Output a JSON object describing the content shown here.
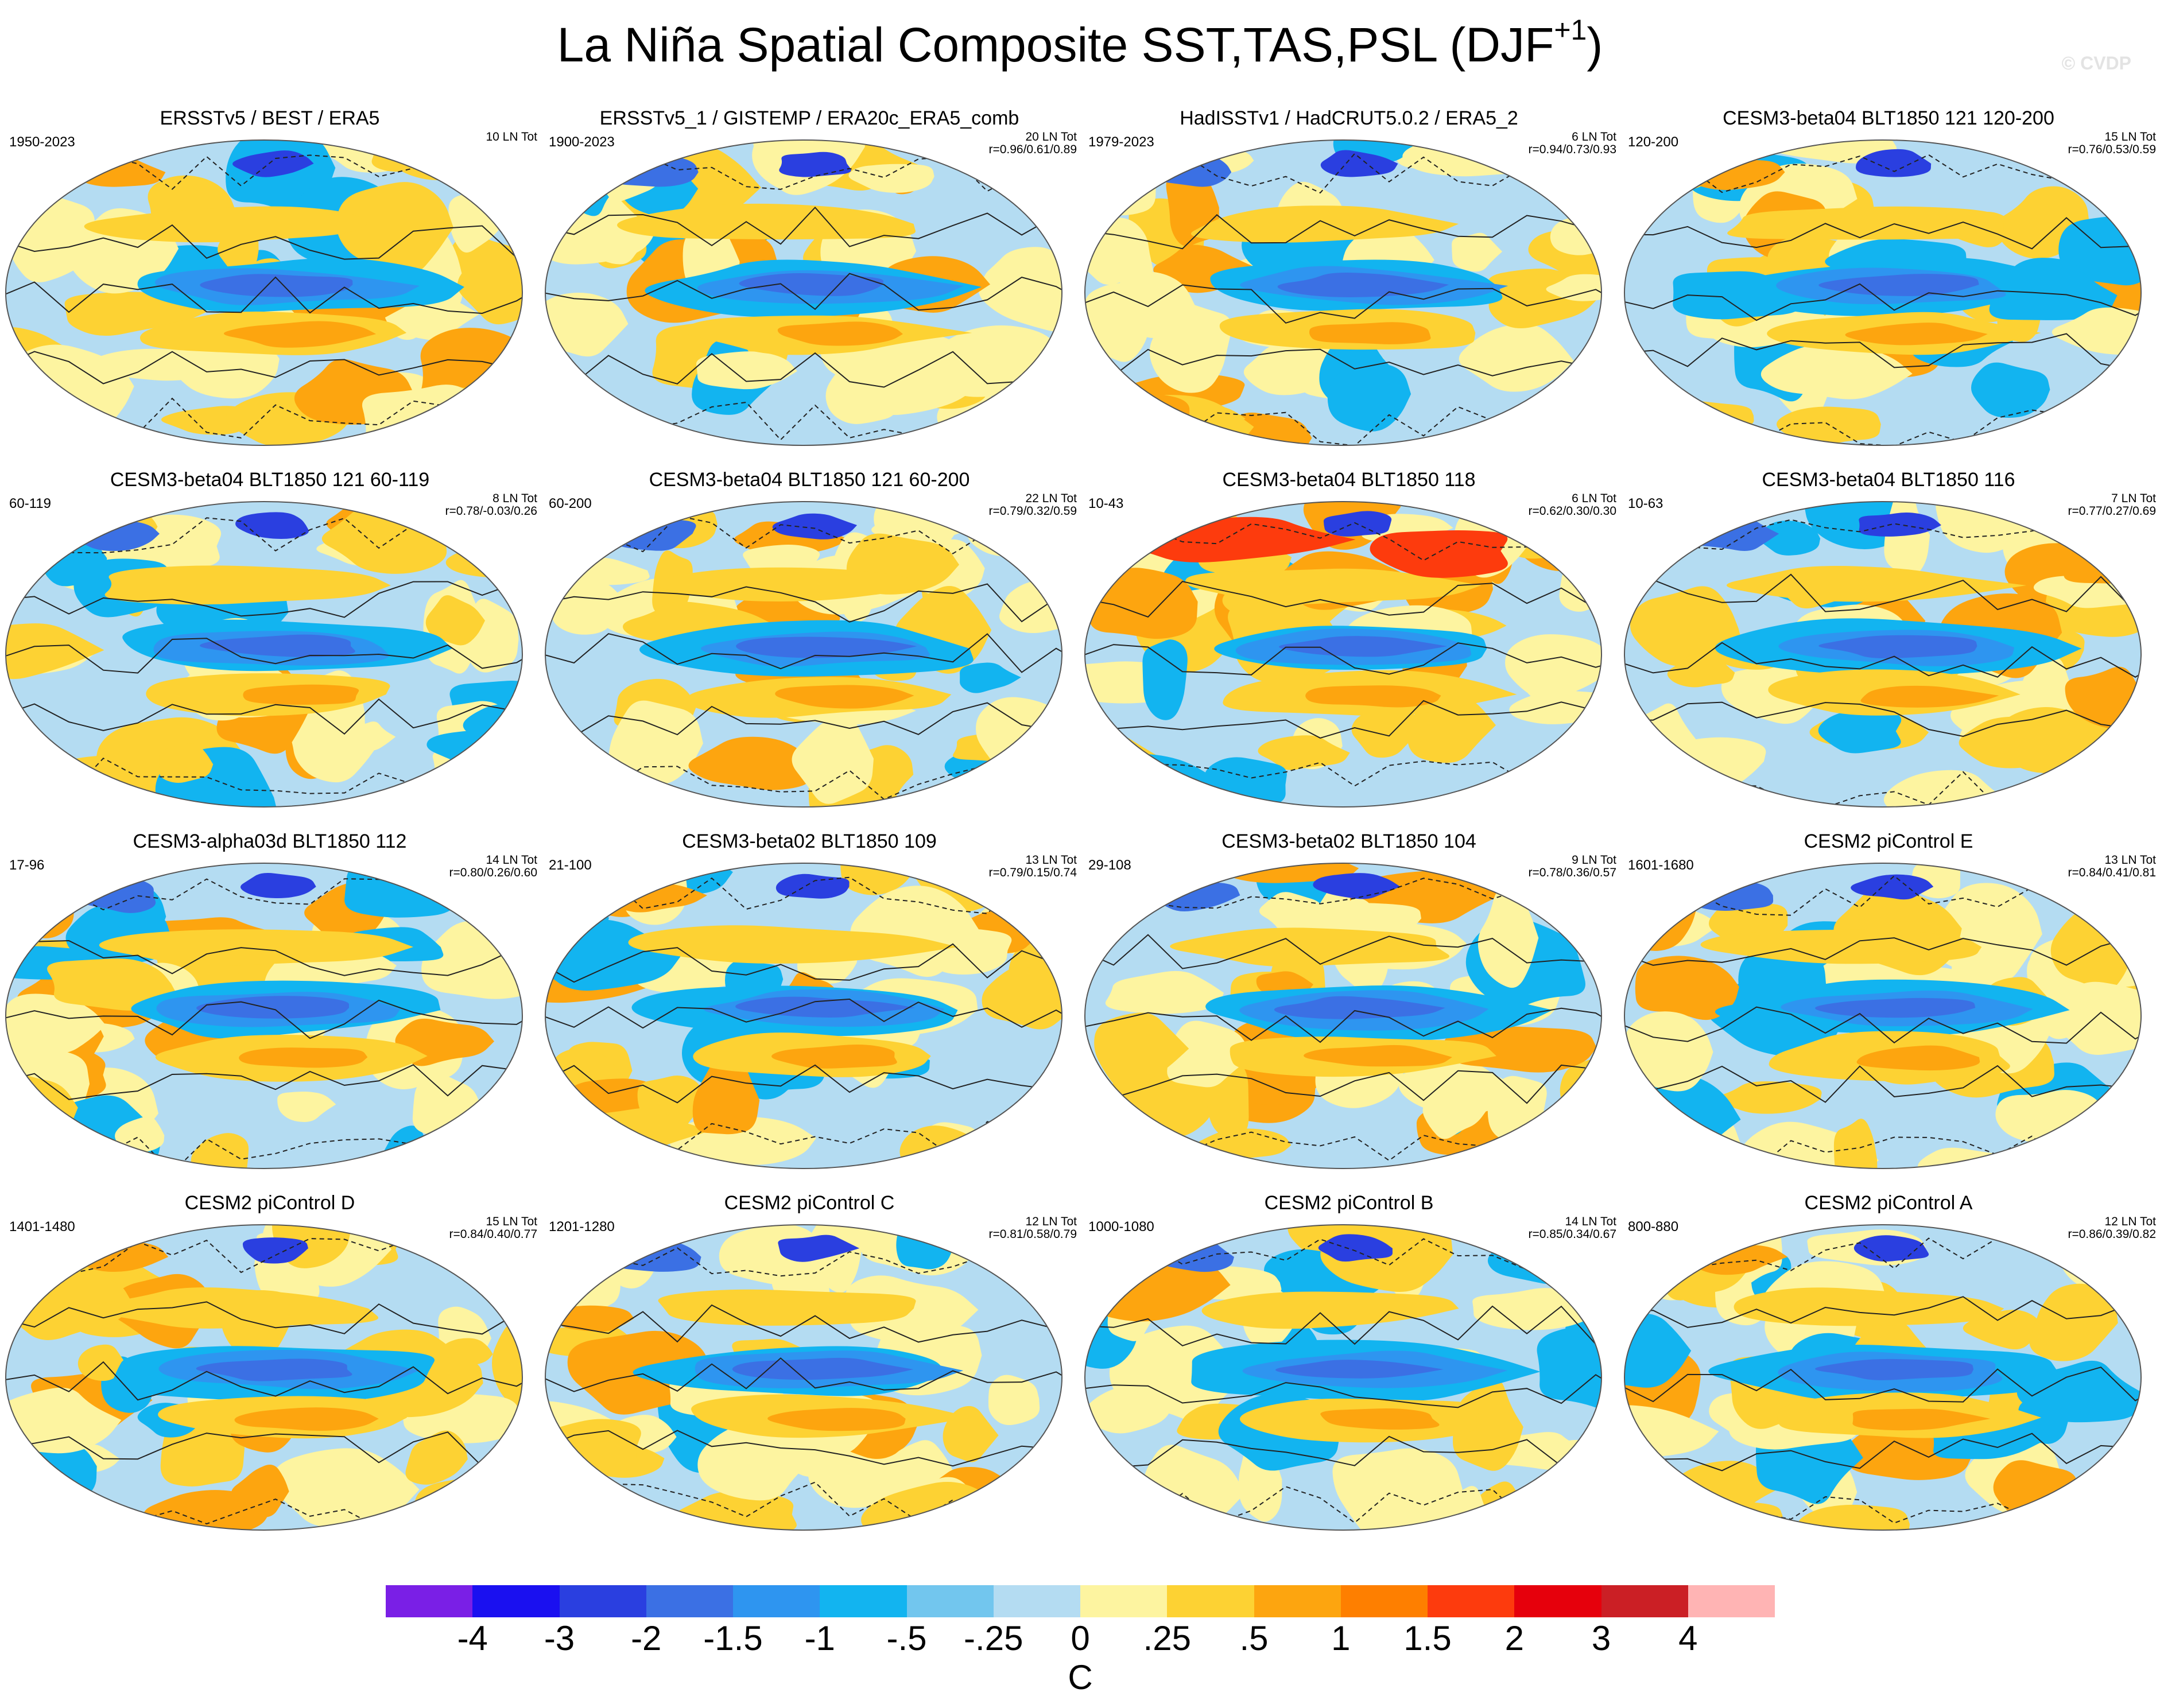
{
  "title": {
    "text": "La Niña Spatial Composite SST,TAS,PSL (DJF",
    "superscript": "+1",
    "close": ")"
  },
  "watermark": "© CVDP",
  "panels": [
    {
      "title": "ERSSTv5 / BEST / ERA5",
      "years": "1950-2023",
      "count": "10 LN Tot",
      "corr": ""
    },
    {
      "title": "ERSSTv5_1 / GISTEMP / ERA20c_ERA5_comb",
      "years": "1900-2023",
      "count": "20 LN Tot",
      "corr": "r=0.96/0.61/0.89"
    },
    {
      "title": "HadISSTv1 / HadCRUT5.0.2 / ERA5_2",
      "years": "1979-2023",
      "count": "6 LN Tot",
      "corr": "r=0.94/0.73/0.93"
    },
    {
      "title": "CESM3-beta04 BLT1850 121 120-200",
      "years": "120-200",
      "count": "15 LN Tot",
      "corr": "r=0.76/0.53/0.59"
    },
    {
      "title": "CESM3-beta04 BLT1850 121 60-119",
      "years": "60-119",
      "count": "8 LN Tot",
      "corr": "r=0.78/-0.03/0.26"
    },
    {
      "title": "CESM3-beta04 BLT1850 121 60-200",
      "years": "60-200",
      "count": "22 LN Tot",
      "corr": "r=0.79/0.32/0.59"
    },
    {
      "title": "CESM3-beta04 BLT1850 118",
      "years": "10-43",
      "count": "6 LN Tot",
      "corr": "r=0.62/0.30/0.30"
    },
    {
      "title": "CESM3-beta04 BLT1850 116",
      "years": "10-63",
      "count": "7 LN Tot",
      "corr": "r=0.77/0.27/0.69"
    },
    {
      "title": "CESM3-alpha03d BLT1850 112",
      "years": "17-96",
      "count": "14 LN Tot",
      "corr": "r=0.80/0.26/0.60"
    },
    {
      "title": "CESM3-beta02 BLT1850 109",
      "years": "21-100",
      "count": "13 LN Tot",
      "corr": "r=0.79/0.15/0.74"
    },
    {
      "title": "CESM3-beta02 BLT1850 104",
      "years": "29-108",
      "count": "9 LN Tot",
      "corr": "r=0.78/0.36/0.57"
    },
    {
      "title": "CESM2 piControl E",
      "years": "1601-1680",
      "count": "13 LN Tot",
      "corr": "r=0.84/0.41/0.81"
    },
    {
      "title": "CESM2 piControl D",
      "years": "1401-1480",
      "count": "15 LN Tot",
      "corr": "r=0.84/0.40/0.77"
    },
    {
      "title": "CESM2 piControl C",
      "years": "1201-1280",
      "count": "12 LN Tot",
      "corr": "r=0.81/0.58/0.79"
    },
    {
      "title": "CESM2 piControl B",
      "years": "1000-1080",
      "count": "14 LN Tot",
      "corr": "r=0.85/0.34/0.67"
    },
    {
      "title": "CESM2 piControl A",
      "years": "800-880",
      "count": "12 LN Tot",
      "corr": "r=0.86/0.39/0.82"
    }
  ],
  "colorbar": {
    "unit": "C",
    "labels": [
      "-4",
      "-3",
      "-2",
      "-1.5",
      "-1",
      "-.5",
      "-.25",
      "0",
      ".25",
      ".5",
      "1",
      "1.5",
      "2",
      "3",
      "4"
    ],
    "colors": [
      "#7a1fe6",
      "#1a10f0",
      "#2a3fe0",
      "#3b70e4",
      "#2e95f0",
      "#12b4f0",
      "#72c6ee",
      "#b4dcf2",
      "#fdf4a0",
      "#fdd233",
      "#fda50f",
      "#fe7f00",
      "#fd3b0d",
      "#e6000c",
      "#cb1f25",
      "#ffb4b4"
    ]
  }
}
